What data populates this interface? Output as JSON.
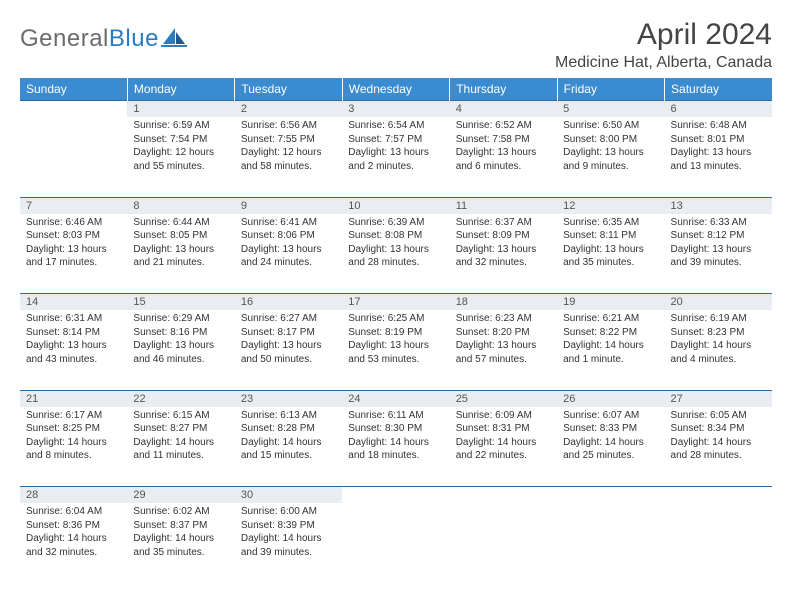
{
  "logo": {
    "text_gray": "General",
    "text_blue": "Blue"
  },
  "title": "April 2024",
  "location": "Medicine Hat, Alberta, Canada",
  "weekdays": [
    "Sunday",
    "Monday",
    "Tuesday",
    "Wednesday",
    "Thursday",
    "Friday",
    "Saturday"
  ],
  "colors": {
    "header_bg": "#3a8bd0",
    "header_text": "#ffffff",
    "daynum_bg": "#e9edf1",
    "border": "#2b6aa3",
    "text": "#333333"
  },
  "weeks": [
    [
      null,
      {
        "d": "1",
        "sr": "Sunrise: 6:59 AM",
        "ss": "Sunset: 7:54 PM",
        "dl1": "Daylight: 12 hours",
        "dl2": "and 55 minutes."
      },
      {
        "d": "2",
        "sr": "Sunrise: 6:56 AM",
        "ss": "Sunset: 7:55 PM",
        "dl1": "Daylight: 12 hours",
        "dl2": "and 58 minutes."
      },
      {
        "d": "3",
        "sr": "Sunrise: 6:54 AM",
        "ss": "Sunset: 7:57 PM",
        "dl1": "Daylight: 13 hours",
        "dl2": "and 2 minutes."
      },
      {
        "d": "4",
        "sr": "Sunrise: 6:52 AM",
        "ss": "Sunset: 7:58 PM",
        "dl1": "Daylight: 13 hours",
        "dl2": "and 6 minutes."
      },
      {
        "d": "5",
        "sr": "Sunrise: 6:50 AM",
        "ss": "Sunset: 8:00 PM",
        "dl1": "Daylight: 13 hours",
        "dl2": "and 9 minutes."
      },
      {
        "d": "6",
        "sr": "Sunrise: 6:48 AM",
        "ss": "Sunset: 8:01 PM",
        "dl1": "Daylight: 13 hours",
        "dl2": "and 13 minutes."
      }
    ],
    [
      {
        "d": "7",
        "sr": "Sunrise: 6:46 AM",
        "ss": "Sunset: 8:03 PM",
        "dl1": "Daylight: 13 hours",
        "dl2": "and 17 minutes."
      },
      {
        "d": "8",
        "sr": "Sunrise: 6:44 AM",
        "ss": "Sunset: 8:05 PM",
        "dl1": "Daylight: 13 hours",
        "dl2": "and 21 minutes."
      },
      {
        "d": "9",
        "sr": "Sunrise: 6:41 AM",
        "ss": "Sunset: 8:06 PM",
        "dl1": "Daylight: 13 hours",
        "dl2": "and 24 minutes."
      },
      {
        "d": "10",
        "sr": "Sunrise: 6:39 AM",
        "ss": "Sunset: 8:08 PM",
        "dl1": "Daylight: 13 hours",
        "dl2": "and 28 minutes."
      },
      {
        "d": "11",
        "sr": "Sunrise: 6:37 AM",
        "ss": "Sunset: 8:09 PM",
        "dl1": "Daylight: 13 hours",
        "dl2": "and 32 minutes."
      },
      {
        "d": "12",
        "sr": "Sunrise: 6:35 AM",
        "ss": "Sunset: 8:11 PM",
        "dl1": "Daylight: 13 hours",
        "dl2": "and 35 minutes."
      },
      {
        "d": "13",
        "sr": "Sunrise: 6:33 AM",
        "ss": "Sunset: 8:12 PM",
        "dl1": "Daylight: 13 hours",
        "dl2": "and 39 minutes."
      }
    ],
    [
      {
        "d": "14",
        "sr": "Sunrise: 6:31 AM",
        "ss": "Sunset: 8:14 PM",
        "dl1": "Daylight: 13 hours",
        "dl2": "and 43 minutes."
      },
      {
        "d": "15",
        "sr": "Sunrise: 6:29 AM",
        "ss": "Sunset: 8:16 PM",
        "dl1": "Daylight: 13 hours",
        "dl2": "and 46 minutes."
      },
      {
        "d": "16",
        "sr": "Sunrise: 6:27 AM",
        "ss": "Sunset: 8:17 PM",
        "dl1": "Daylight: 13 hours",
        "dl2": "and 50 minutes."
      },
      {
        "d": "17",
        "sr": "Sunrise: 6:25 AM",
        "ss": "Sunset: 8:19 PM",
        "dl1": "Daylight: 13 hours",
        "dl2": "and 53 minutes."
      },
      {
        "d": "18",
        "sr": "Sunrise: 6:23 AM",
        "ss": "Sunset: 8:20 PM",
        "dl1": "Daylight: 13 hours",
        "dl2": "and 57 minutes."
      },
      {
        "d": "19",
        "sr": "Sunrise: 6:21 AM",
        "ss": "Sunset: 8:22 PM",
        "dl1": "Daylight: 14 hours",
        "dl2": "and 1 minute."
      },
      {
        "d": "20",
        "sr": "Sunrise: 6:19 AM",
        "ss": "Sunset: 8:23 PM",
        "dl1": "Daylight: 14 hours",
        "dl2": "and 4 minutes."
      }
    ],
    [
      {
        "d": "21",
        "sr": "Sunrise: 6:17 AM",
        "ss": "Sunset: 8:25 PM",
        "dl1": "Daylight: 14 hours",
        "dl2": "and 8 minutes."
      },
      {
        "d": "22",
        "sr": "Sunrise: 6:15 AM",
        "ss": "Sunset: 8:27 PM",
        "dl1": "Daylight: 14 hours",
        "dl2": "and 11 minutes."
      },
      {
        "d": "23",
        "sr": "Sunrise: 6:13 AM",
        "ss": "Sunset: 8:28 PM",
        "dl1": "Daylight: 14 hours",
        "dl2": "and 15 minutes."
      },
      {
        "d": "24",
        "sr": "Sunrise: 6:11 AM",
        "ss": "Sunset: 8:30 PM",
        "dl1": "Daylight: 14 hours",
        "dl2": "and 18 minutes."
      },
      {
        "d": "25",
        "sr": "Sunrise: 6:09 AM",
        "ss": "Sunset: 8:31 PM",
        "dl1": "Daylight: 14 hours",
        "dl2": "and 22 minutes."
      },
      {
        "d": "26",
        "sr": "Sunrise: 6:07 AM",
        "ss": "Sunset: 8:33 PM",
        "dl1": "Daylight: 14 hours",
        "dl2": "and 25 minutes."
      },
      {
        "d": "27",
        "sr": "Sunrise: 6:05 AM",
        "ss": "Sunset: 8:34 PM",
        "dl1": "Daylight: 14 hours",
        "dl2": "and 28 minutes."
      }
    ],
    [
      {
        "d": "28",
        "sr": "Sunrise: 6:04 AM",
        "ss": "Sunset: 8:36 PM",
        "dl1": "Daylight: 14 hours",
        "dl2": "and 32 minutes."
      },
      {
        "d": "29",
        "sr": "Sunrise: 6:02 AM",
        "ss": "Sunset: 8:37 PM",
        "dl1": "Daylight: 14 hours",
        "dl2": "and 35 minutes."
      },
      {
        "d": "30",
        "sr": "Sunrise: 6:00 AM",
        "ss": "Sunset: 8:39 PM",
        "dl1": "Daylight: 14 hours",
        "dl2": "and 39 minutes."
      },
      null,
      null,
      null,
      null
    ]
  ]
}
